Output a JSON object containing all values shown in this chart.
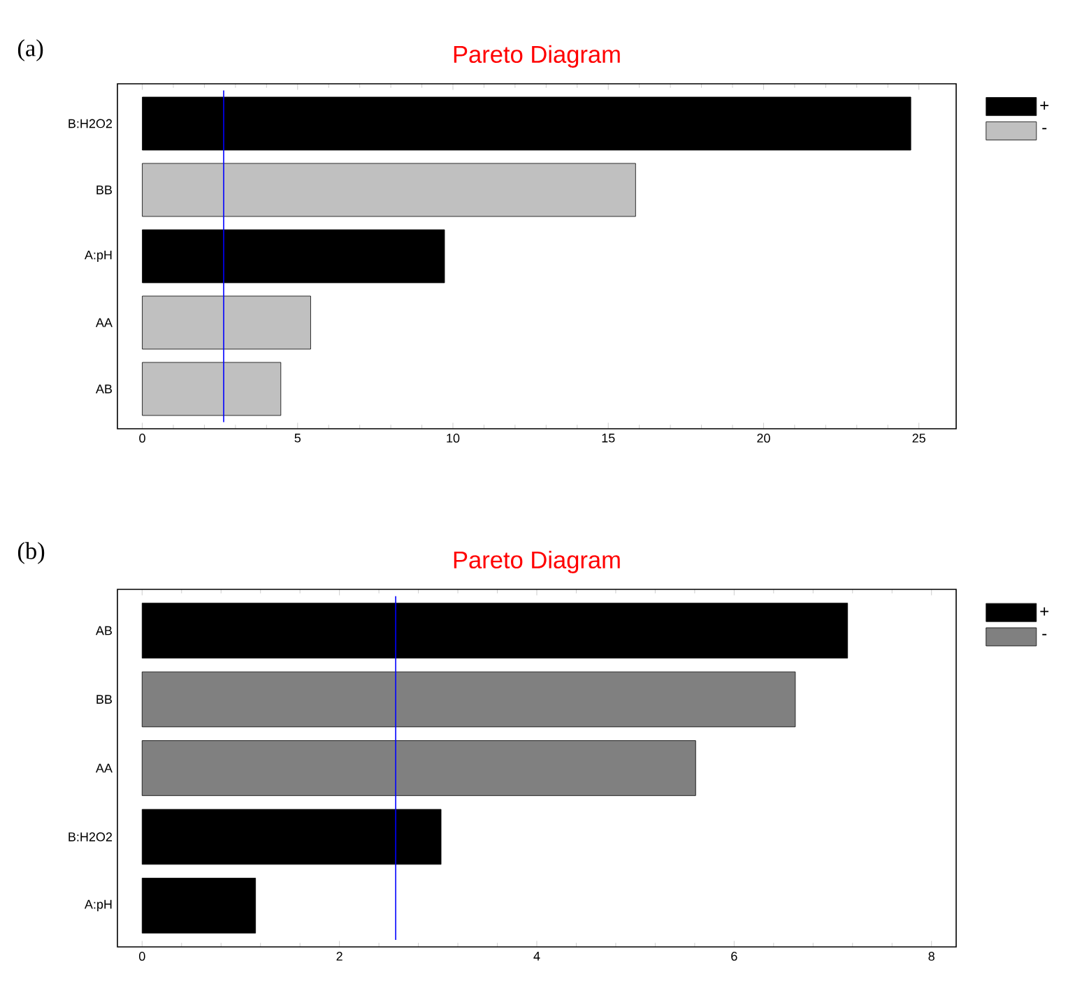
{
  "chart_data": [
    {
      "type": "bar",
      "orientation": "horizontal",
      "title": "Pareto Diagram",
      "annotations": [
        "(a)"
      ],
      "categories": [
        "B:H2O2",
        "BB",
        "A:pH",
        "AA",
        "AB"
      ],
      "series": [
        {
          "name": "+",
          "color": "#000000",
          "values": [
            24.74,
            null,
            9.73,
            null,
            null
          ]
        },
        {
          "name": "-",
          "color": "#c0c0c0",
          "values": [
            null,
            15.88,
            null,
            5.42,
            4.46
          ]
        }
      ],
      "xlim": [
        -0.8,
        26.2
      ],
      "xticks": [
        0,
        5,
        10,
        15,
        20,
        25
      ],
      "ref_lines": [
        {
          "axis": "x",
          "value": 2.62,
          "color": "#0000ff"
        }
      ],
      "legend": "right",
      "grid": false
    },
    {
      "type": "bar",
      "orientation": "horizontal",
      "title": "Pareto Diagram",
      "annotations": [
        "(b)"
      ],
      "categories": [
        "AB",
        "BB",
        "AA",
        "B:H2O2",
        "A:pH"
      ],
      "series": [
        {
          "name": "+",
          "color": "#000000",
          "values": [
            7.15,
            null,
            null,
            3.03,
            1.15
          ]
        },
        {
          "name": "-",
          "color": "#808080",
          "values": [
            null,
            6.62,
            5.61,
            null,
            null
          ]
        }
      ],
      "xlim": [
        -0.25,
        8.25
      ],
      "xticks": [
        0,
        2,
        4,
        6,
        8
      ],
      "ref_lines": [
        {
          "axis": "x",
          "value": 2.57,
          "color": "#0000ff"
        }
      ],
      "legend": "right",
      "grid": false
    }
  ]
}
